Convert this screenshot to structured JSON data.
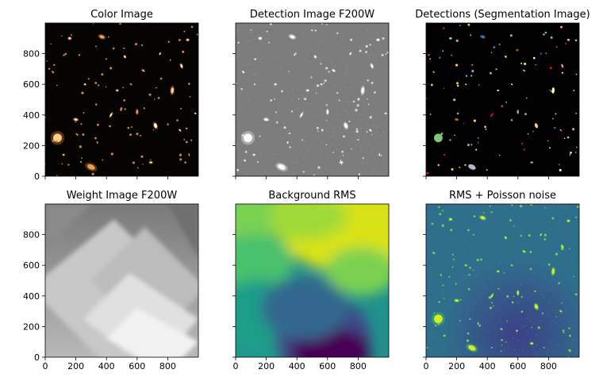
{
  "figure": {
    "panels": [
      {
        "title": "Color Image",
        "kind": "color"
      },
      {
        "title": "Detection Image F200W",
        "kind": "detection"
      },
      {
        "title": "Detections (Segmentation Image)",
        "kind": "segmentation"
      },
      {
        "title": "Weight Image F200W",
        "kind": "weight"
      },
      {
        "title": "Background RMS",
        "kind": "background"
      },
      {
        "title": "RMS + Poisson noise",
        "kind": "rmspoisson"
      }
    ]
  },
  "chart_data": {
    "type": "heatmap",
    "layout": "2x3 image grid, shared axes",
    "xlim": [
      0,
      1000
    ],
    "ylim": [
      0,
      1000
    ],
    "x_ticks": [
      0,
      200,
      400,
      600,
      800
    ],
    "y_ticks": [
      0,
      200,
      400,
      600,
      800
    ],
    "x_tick_labels": [
      "0",
      "200",
      "400",
      "600",
      "800"
    ],
    "y_tick_labels": [
      "0",
      "200",
      "400",
      "600",
      "800"
    ],
    "x_tick_labels_shown_on": "bottom row",
    "y_tick_labels_shown_on": "left column",
    "panels": [
      {
        "title": "Color Image",
        "colormap": "true-color RGB",
        "background": "#060403"
      },
      {
        "title": "Detection Image F200W",
        "colormap": "gray",
        "background": "#7f7f7f"
      },
      {
        "title": "Detections (Segmentation Image)",
        "colormap": "random labels",
        "background": "#000000"
      },
      {
        "title": "Weight Image F200W",
        "colormap": "gray",
        "note": "overlapping rotated exposure footprints, brightest lower-middle"
      },
      {
        "title": "Background RMS",
        "colormap": "viridis",
        "note": "high (yellow) toward top, low (purple) toward bottom center"
      },
      {
        "title": "RMS + Poisson noise",
        "colormap": "viridis",
        "note": "sources bright green/yellow on teal background"
      }
    ],
    "sources": [
      {
        "x": 80,
        "y": 250,
        "size": 30,
        "angle": 0,
        "e": 1.0
      },
      {
        "x": 300,
        "y": 60,
        "size": 28,
        "angle": 25,
        "e": 0.6
      },
      {
        "x": 720,
        "y": 330,
        "size": 18,
        "angle": 70,
        "e": 0.6
      },
      {
        "x": 830,
        "y": 560,
        "size": 22,
        "angle": 95,
        "e": 0.45
      },
      {
        "x": 370,
        "y": 910,
        "size": 18,
        "angle": 20,
        "e": 0.6
      },
      {
        "x": 430,
        "y": 400,
        "size": 16,
        "angle": 120,
        "e": 0.35
      },
      {
        "x": 200,
        "y": 370,
        "size": 14,
        "angle": 10,
        "e": 0.6
      },
      {
        "x": 600,
        "y": 420,
        "size": 14,
        "angle": 90,
        "e": 0.5
      },
      {
        "x": 890,
        "y": 720,
        "size": 14,
        "angle": 70,
        "e": 0.5
      },
      {
        "x": 160,
        "y": 900,
        "size": 10,
        "angle": 0,
        "e": 0.8
      },
      {
        "x": 640,
        "y": 690,
        "size": 10,
        "angle": 30,
        "e": 0.6
      },
      {
        "x": 520,
        "y": 780,
        "size": 9,
        "angle": 60,
        "e": 0.7
      },
      {
        "x": 930,
        "y": 890,
        "size": 9,
        "angle": 0,
        "e": 0.8
      },
      {
        "x": 50,
        "y": 680,
        "size": 8,
        "angle": 45,
        "e": 0.6
      },
      {
        "x": 880,
        "y": 300,
        "size": 9,
        "angle": 45,
        "e": 0.5
      },
      {
        "x": 690,
        "y": 90,
        "size": 10,
        "angle": 0,
        "e": 0.7
      },
      {
        "x": 940,
        "y": 140,
        "size": 8,
        "angle": 80,
        "e": 0.5
      },
      {
        "x": 260,
        "y": 600,
        "size": 7,
        "angle": 0,
        "e": 0.8
      },
      {
        "x": 470,
        "y": 560,
        "size": 8,
        "angle": 0,
        "e": 0.8
      },
      {
        "x": 560,
        "y": 600,
        "size": 7,
        "angle": 30,
        "e": 0.6
      },
      {
        "x": 750,
        "y": 800,
        "size": 8,
        "angle": 120,
        "e": 0.6
      },
      {
        "x": 120,
        "y": 140,
        "size": 7,
        "angle": 0,
        "e": 0.8
      },
      {
        "x": 340,
        "y": 220,
        "size": 7,
        "angle": 90,
        "e": 0.6
      },
      {
        "x": 980,
        "y": 410,
        "size": 7,
        "angle": 20,
        "e": 0.6
      }
    ]
  }
}
